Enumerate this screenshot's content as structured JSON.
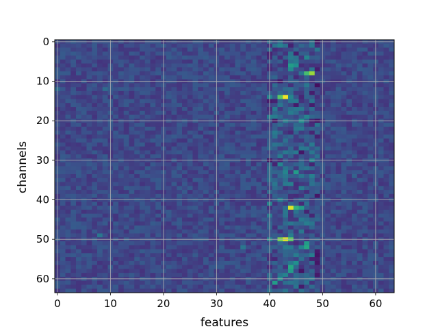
{
  "chart_data": {
    "type": "heatmap",
    "title": "",
    "xlabel": "features",
    "ylabel": "channels",
    "xlim": [
      -0.5,
      63.5
    ],
    "ylim": [
      63.5,
      -0.5
    ],
    "x_ticks": [
      0,
      10,
      20,
      30,
      40,
      50,
      60
    ],
    "y_ticks": [
      0,
      10,
      20,
      30,
      40,
      50,
      60
    ],
    "x_tick_labels": [
      "0",
      "10",
      "20",
      "30",
      "40",
      "50",
      "60"
    ],
    "y_tick_labels": [
      "0",
      "10",
      "20",
      "30",
      "40",
      "50",
      "60"
    ],
    "grid": true,
    "colormap": "viridis",
    "value_range": [
      0,
      1
    ],
    "shape": [
      64,
      64
    ],
    "background_value": 0.22,
    "hot_cells": [
      {
        "channel": 6,
        "feature": 44,
        "value": 0.55
      },
      {
        "channel": 6,
        "feature": 45,
        "value": 0.5
      },
      {
        "channel": 7,
        "feature": 44,
        "value": 0.48
      },
      {
        "channel": 8,
        "feature": 47,
        "value": 0.7
      },
      {
        "channel": 8,
        "feature": 48,
        "value": 0.85
      },
      {
        "channel": 4,
        "feature": 47,
        "value": 0.45
      },
      {
        "channel": 14,
        "feature": 42,
        "value": 0.75
      },
      {
        "channel": 14,
        "feature": 43,
        "value": 0.98
      },
      {
        "channel": 14,
        "feature": 44,
        "value": 0.45
      },
      {
        "channel": 15,
        "feature": 44,
        "value": 0.4
      },
      {
        "channel": 20,
        "feature": 46,
        "value": 0.5
      },
      {
        "channel": 19,
        "feature": 47,
        "value": 0.45
      },
      {
        "channel": 31,
        "feature": 42,
        "value": 0.45
      },
      {
        "channel": 33,
        "feature": 43,
        "value": 0.45
      },
      {
        "channel": 33,
        "feature": 45,
        "value": 0.55
      },
      {
        "channel": 34,
        "feature": 46,
        "value": 0.4
      },
      {
        "channel": 36,
        "feature": 41,
        "value": 0.4
      },
      {
        "channel": 42,
        "feature": 44,
        "value": 0.95
      },
      {
        "channel": 42,
        "feature": 45,
        "value": 0.65
      },
      {
        "channel": 42,
        "feature": 46,
        "value": 0.55
      },
      {
        "channel": 43,
        "feature": 43,
        "value": 0.4
      },
      {
        "channel": 50,
        "feature": 42,
        "value": 0.8
      },
      {
        "channel": 50,
        "feature": 43,
        "value": 0.95
      },
      {
        "channel": 50,
        "feature": 44,
        "value": 0.75
      },
      {
        "channel": 51,
        "feature": 47,
        "value": 0.55
      },
      {
        "channel": 52,
        "feature": 47,
        "value": 0.6
      },
      {
        "channel": 52,
        "feature": 46,
        "value": 0.45
      },
      {
        "channel": 52,
        "feature": 35,
        "value": 0.4
      },
      {
        "channel": 56,
        "feature": 45,
        "value": 0.5
      },
      {
        "channel": 57,
        "feature": 44,
        "value": 0.6
      },
      {
        "channel": 58,
        "feature": 44,
        "value": 0.55
      },
      {
        "channel": 59,
        "feature": 43,
        "value": 0.45
      },
      {
        "channel": 61,
        "feature": 41,
        "value": 0.55
      },
      {
        "channel": 60,
        "feature": 42,
        "value": 0.5
      },
      {
        "channel": 12,
        "feature": 0,
        "value": 0.35
      },
      {
        "channel": 12,
        "feature": 9,
        "value": 0.35
      },
      {
        "channel": 49,
        "feature": 8,
        "value": 0.4
      },
      {
        "channel": 34,
        "feature": 56,
        "value": 0.32
      }
    ]
  }
}
